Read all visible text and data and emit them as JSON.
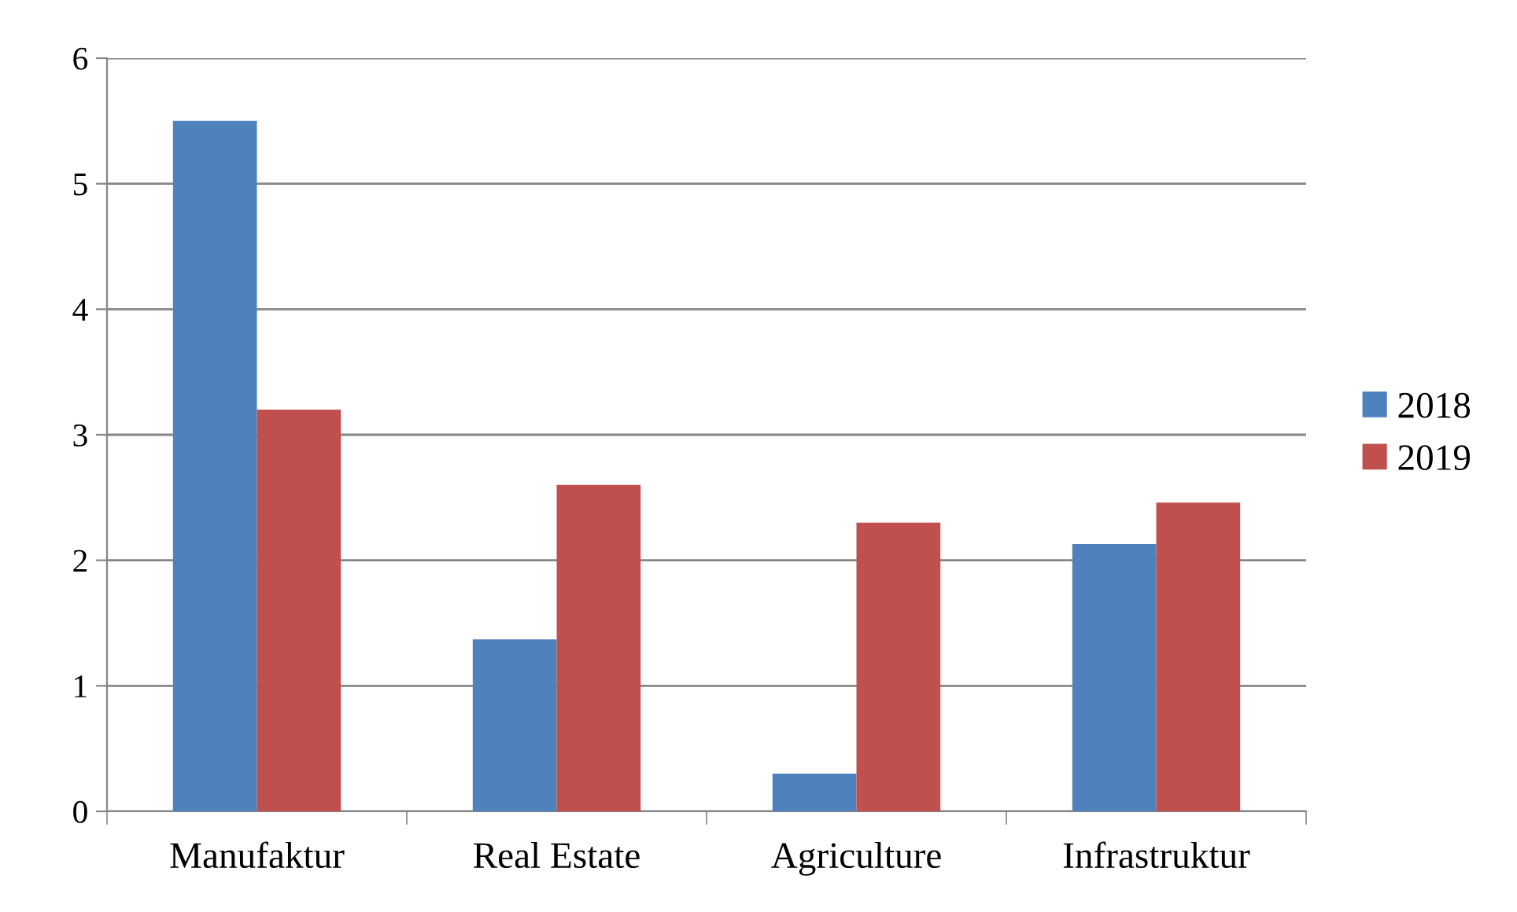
{
  "chart_data": {
    "type": "bar",
    "categories": [
      "Manufaktur",
      "Real Estate",
      "Agriculture",
      "Infrastruktur"
    ],
    "series": [
      {
        "name": "2018",
        "color": "#4f81bd",
        "values": [
          5.5,
          1.37,
          0.3,
          2.13
        ]
      },
      {
        "name": "2019",
        "color": "#c0504d",
        "values": [
          3.2,
          2.6,
          2.3,
          2.46
        ]
      }
    ],
    "ylim": [
      0,
      6
    ],
    "yticks": [
      0,
      1,
      2,
      3,
      4,
      5,
      6
    ],
    "grid": "y",
    "legend": "right"
  }
}
